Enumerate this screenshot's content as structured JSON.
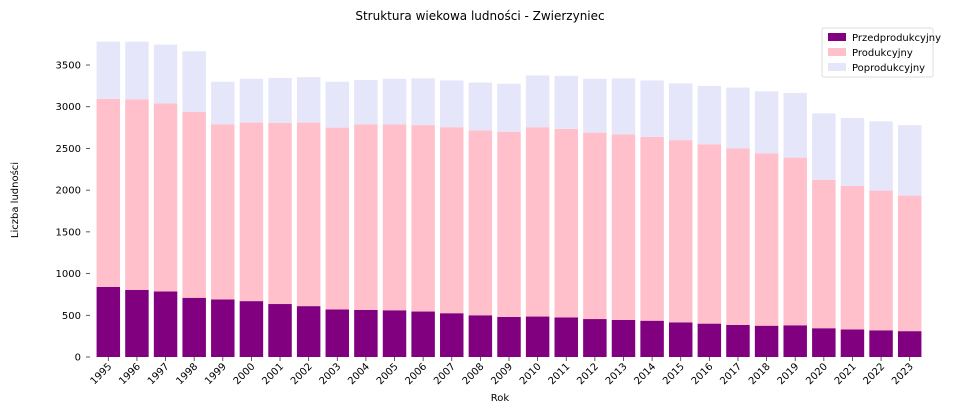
{
  "chart_data": {
    "type": "bar",
    "stacked": true,
    "title": "Struktura wiekowa ludności - Zwierzyniec",
    "xlabel": "Rok",
    "ylabel": "Liczba ludności",
    "ylim": [
      0,
      3800
    ],
    "yticks": [
      0,
      500,
      1000,
      1500,
      2000,
      2500,
      3000,
      3500
    ],
    "grid": false,
    "legend_position": "top-right",
    "categories": [
      "1995",
      "1996",
      "1997",
      "1998",
      "1999",
      "2000",
      "2001",
      "2002",
      "2003",
      "2004",
      "2005",
      "2006",
      "2007",
      "2008",
      "2009",
      "2010",
      "2011",
      "2012",
      "2013",
      "2014",
      "2015",
      "2016",
      "2017",
      "2018",
      "2019",
      "2020",
      "2021",
      "2022",
      "2023"
    ],
    "series": [
      {
        "name": "Przedprodukcyjny",
        "color": "#800080",
        "values": [
          840,
          805,
          785,
          710,
          690,
          670,
          635,
          610,
          570,
          565,
          560,
          545,
          525,
          500,
          480,
          485,
          475,
          455,
          445,
          435,
          415,
          400,
          385,
          375,
          380,
          345,
          330,
          320,
          310
        ]
      },
      {
        "name": "Produkcyjny",
        "color": "#ffc0cb",
        "values": [
          2255,
          2285,
          2255,
          2230,
          2100,
          2140,
          2170,
          2200,
          2180,
          2225,
          2230,
          2235,
          2230,
          2215,
          2220,
          2270,
          2260,
          2235,
          2225,
          2205,
          2185,
          2150,
          2115,
          2065,
          2010,
          1780,
          1720,
          1675,
          1625
        ]
      },
      {
        "name": "Poprodukcyjny",
        "color": "#e6e6fa",
        "values": [
          685,
          690,
          705,
          725,
          510,
          525,
          540,
          545,
          550,
          530,
          545,
          560,
          560,
          575,
          575,
          620,
          635,
          645,
          670,
          675,
          680,
          700,
          730,
          745,
          775,
          795,
          815,
          830,
          845
        ]
      }
    ]
  }
}
